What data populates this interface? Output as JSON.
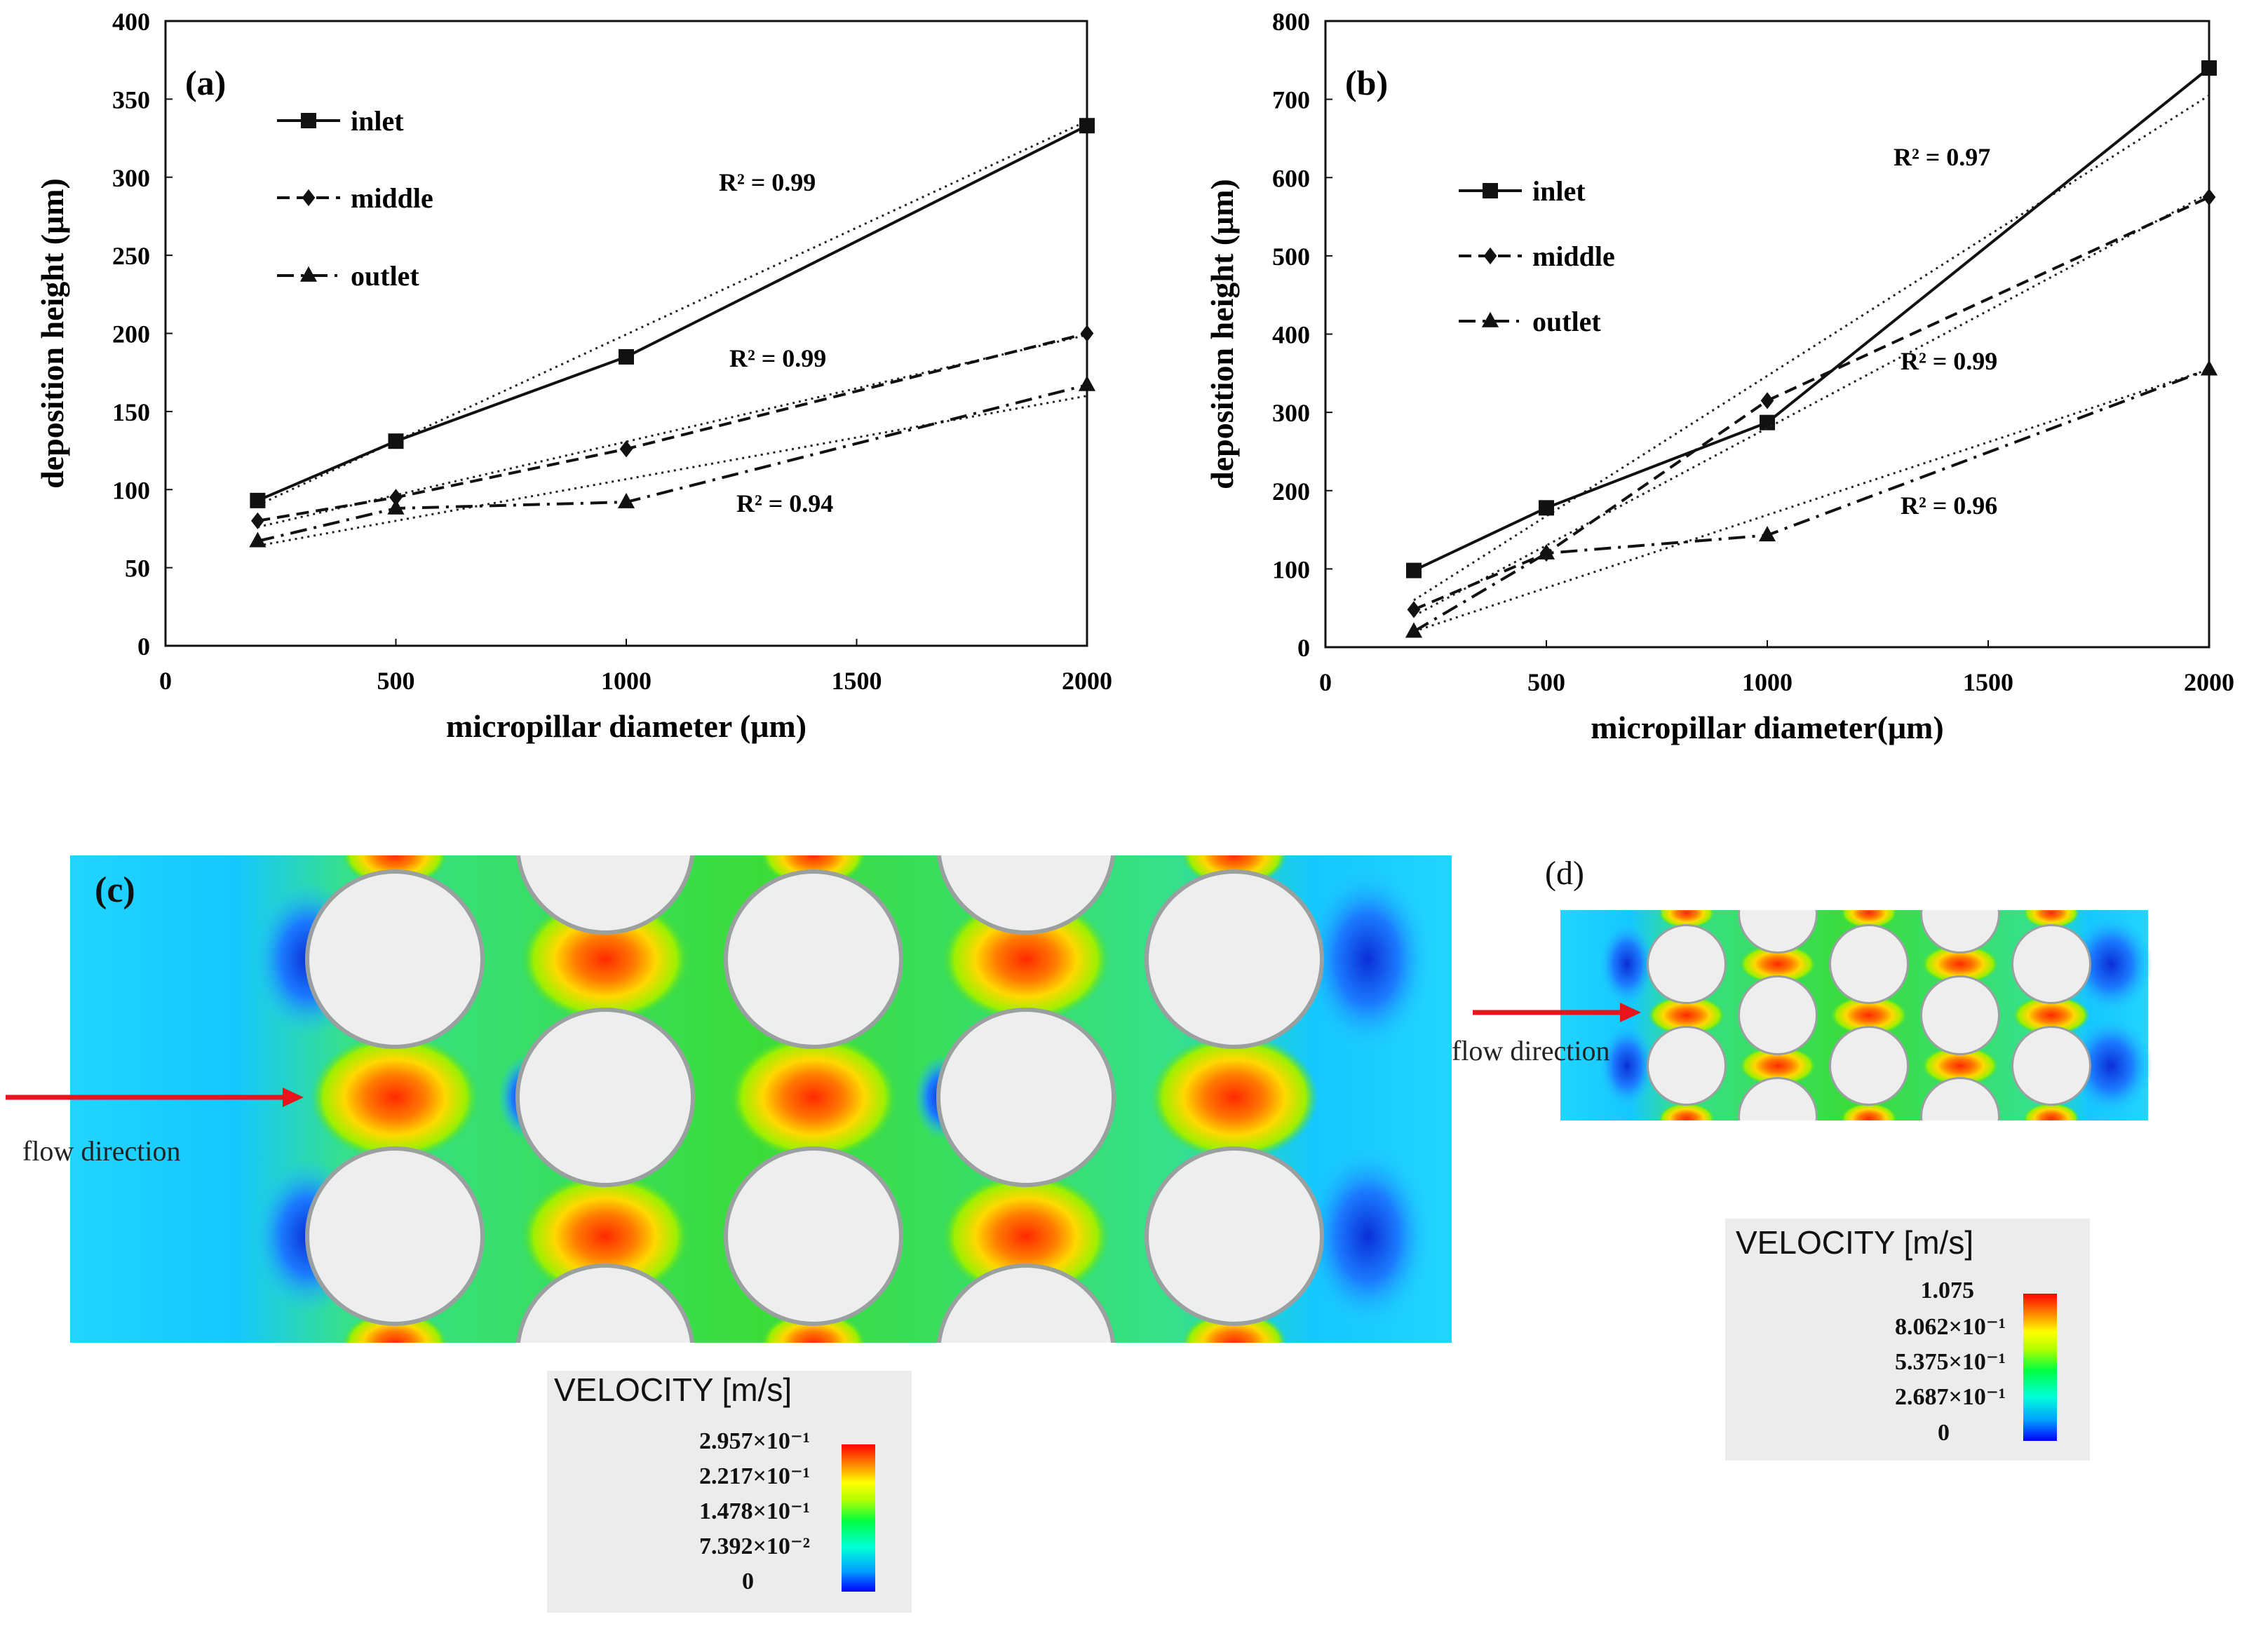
{
  "chart_data": [
    {
      "type": "line",
      "panel": "(a)",
      "xlabel": "micropillar diameter (μm)",
      "ylabel": "deposition height (μm)",
      "xlim": [
        0,
        2000
      ],
      "ylim": [
        0,
        400
      ],
      "xticks": [
        "0",
        "500",
        "1000",
        "1500",
        "2000"
      ],
      "yticks": [
        "0",
        "50",
        "100",
        "150",
        "200",
        "250",
        "300",
        "350",
        "400"
      ],
      "x": [
        200,
        500,
        1000,
        2000
      ],
      "series": [
        {
          "name": "inlet",
          "marker": "square",
          "dash": "solid",
          "values": [
            93,
            131,
            185,
            333
          ],
          "r2": "R² = 0.99",
          "trend": [
            90,
            336
          ]
        },
        {
          "name": "middle",
          "marker": "diamond",
          "dash": "dashed",
          "values": [
            80,
            95,
            126,
            200
          ],
          "r2": "R² = 0.99",
          "trend": [
            76,
            199
          ]
        },
        {
          "name": "outlet",
          "marker": "triangle",
          "dash": "dashdot",
          "values": [
            67,
            88,
            92,
            167
          ],
          "r2": "R² = 0.94",
          "trend": [
            64,
            160
          ]
        }
      ],
      "legend": "top-left"
    },
    {
      "type": "line",
      "panel": "(b)",
      "xlabel": "micropillar diameter(μm)",
      "ylabel": "deposition height (μm)",
      "xlim": [
        0,
        2000
      ],
      "ylim": [
        0,
        800
      ],
      "xticks": [
        "0",
        "500",
        "1000",
        "1500",
        "2000"
      ],
      "yticks": [
        "0",
        "100",
        "200",
        "300",
        "400",
        "500",
        "600",
        "700",
        "800"
      ],
      "x": [
        200,
        500,
        1000,
        2000
      ],
      "series": [
        {
          "name": "inlet",
          "marker": "square",
          "dash": "solid",
          "values": [
            98,
            178,
            287,
            740
          ],
          "r2": "R² = 0.97",
          "trend": [
            60,
            705
          ]
        },
        {
          "name": "middle",
          "marker": "diamond",
          "dash": "dashed",
          "values": [
            48,
            120,
            315,
            575
          ],
          "r2": "R² = 0.99",
          "trend": [
            40,
            580
          ]
        },
        {
          "name": "outlet",
          "marker": "triangle",
          "dash": "dashdot",
          "values": [
            20,
            120,
            143,
            355
          ],
          "r2": "R² = 0.96",
          "trend": [
            20,
            355
          ]
        }
      ],
      "legend": "top-left"
    }
  ],
  "panels": {
    "c": {
      "letter": "(c)",
      "flow_label": "flow direction",
      "legend_title": "VELOCITY [m/s]",
      "legend_values": [
        "2.957×10⁻¹",
        "2.217×10⁻¹",
        "1.478×10⁻¹",
        "7.392×10⁻²",
        "0"
      ]
    },
    "d": {
      "letter": "(d)",
      "flow_label": "flow direction",
      "legend_title": "VELOCITY [m/s]",
      "legend_values": [
        "1.075",
        "8.062×10⁻¹",
        "5.375×10⁻¹",
        "2.687×10⁻¹",
        "0"
      ]
    }
  },
  "colors": {
    "arrow": "#e8141c",
    "pillar": "#eeeeee",
    "fluid_low": "#1fd8ff",
    "fluid_mid": "#2ddb3c",
    "fluid_high": "#ff3a00"
  }
}
